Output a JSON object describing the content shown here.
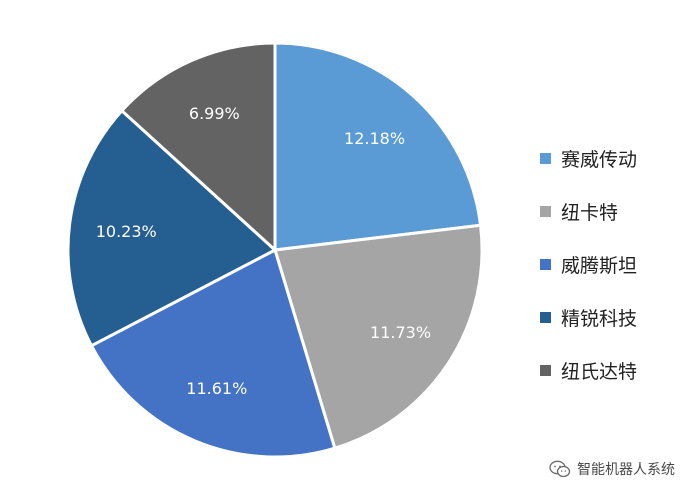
{
  "chart_data": {
    "type": "pie",
    "categories": [
      "赛威传动",
      "纽卡特",
      "威腾斯坦",
      "精锐科技",
      "纽氏达特"
    ],
    "values": [
      12.18,
      11.73,
      11.61,
      10.23,
      6.99
    ],
    "value_labels": [
      "12.18%",
      "11.73%",
      "11.61%",
      "10.23%",
      "6.99%"
    ],
    "colors": [
      "#5b9bd5",
      "#a5a5a5",
      "#4472c4",
      "#255e91",
      "#636363"
    ],
    "start_angle": "12 o'clock",
    "direction": "clockwise",
    "legend_position": "right"
  },
  "legend": {
    "items": [
      {
        "label": "赛威传动",
        "color": "#5b9bd5"
      },
      {
        "label": "纽卡特",
        "color": "#a5a5a5"
      },
      {
        "label": "威腾斯坦",
        "color": "#4472c4"
      },
      {
        "label": "精锐科技",
        "color": "#255e91"
      },
      {
        "label": "纽氏达特",
        "color": "#636363"
      }
    ]
  },
  "watermark": {
    "text": "智能机器人系统",
    "icon": "wechat-icon"
  }
}
